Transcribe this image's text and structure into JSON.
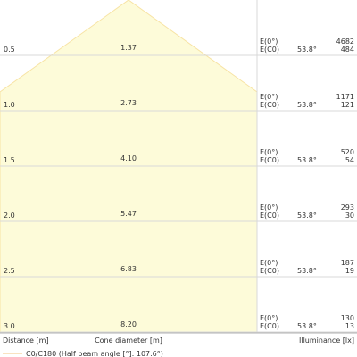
{
  "chart_data": {
    "type": "table",
    "beam_shape": "cone",
    "colors": {
      "cone_fill": "#fdfbd9",
      "cone_stroke": "#f7e3a4",
      "grid": "#d9d9d9",
      "text": "#333333"
    },
    "distances": [
      "0.5",
      "1.0",
      "1.5",
      "2.0",
      "2.5",
      "3.0"
    ],
    "cone_diameters": [
      "1.37",
      "2.73",
      "4.10",
      "5.47",
      "6.83",
      "8.20"
    ],
    "angle_label": "53.8°",
    "e0_label": "E(0°)",
    "ec0_label": "E(C0)",
    "e0_values": [
      "4682",
      "1171",
      "520",
      "293",
      "187",
      "130"
    ],
    "ec0_values": [
      "484",
      "121",
      "54",
      "30",
      "19",
      "13"
    ],
    "xlabel_distance": "Distance [m]",
    "xlabel_cone": "Cone diameter [m]",
    "xlabel_illuminance": "Illuminance [lx]",
    "legend": "C0/C180 (Half beam angle [°]: 107.6°)"
  }
}
